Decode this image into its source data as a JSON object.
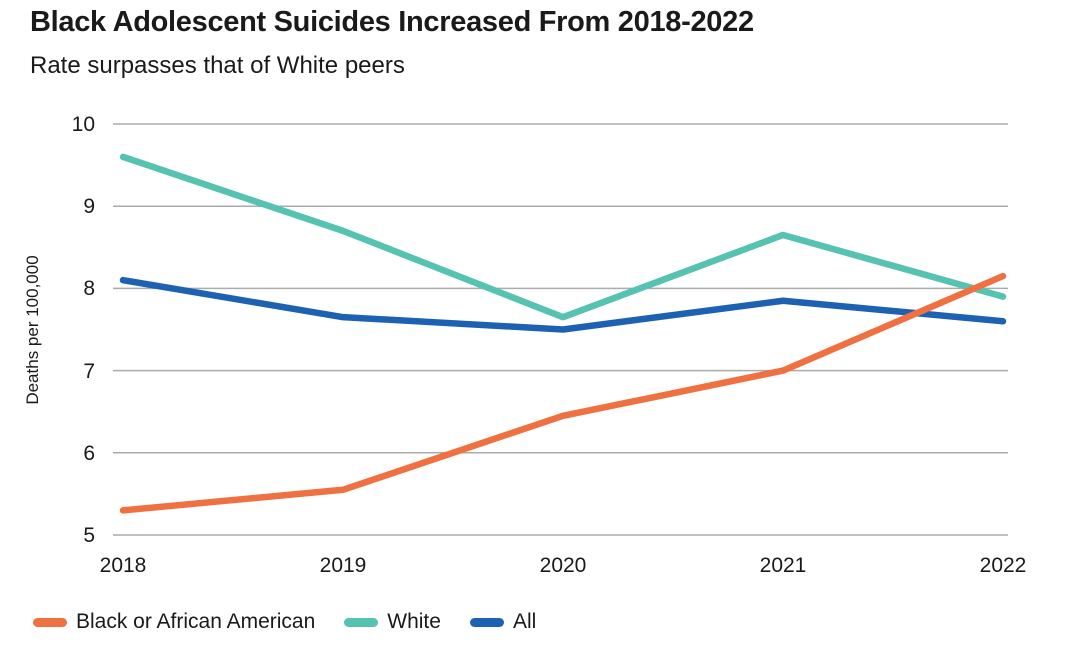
{
  "header": {
    "title": "Black Adolescent Suicides Increased From 2018-2022",
    "subtitle": "Rate surpasses that of White peers"
  },
  "colors": {
    "black_line": "#EF7040",
    "white_line": "#56C2B2",
    "all_line": "#1D62B2",
    "gridline": "#ABABAB",
    "text": "#1A1A1A",
    "background": "#FFFFFF"
  },
  "chart_data": {
    "type": "line",
    "title": "Black Adolescent Suicides Increased From 2018-2022",
    "subtitle": "Rate surpasses that of White peers",
    "x": [
      "2018",
      "2019",
      "2020",
      "2021",
      "2022"
    ],
    "series": [
      {
        "name": "Black or African American",
        "color": "#EF7040",
        "values": [
          5.3,
          5.55,
          6.45,
          7.0,
          8.15
        ]
      },
      {
        "name": "White",
        "color": "#56C2B2",
        "values": [
          9.6,
          8.7,
          7.65,
          8.65,
          7.9
        ]
      },
      {
        "name": "All",
        "color": "#1D62B2",
        "values": [
          8.1,
          7.65,
          7.5,
          7.85,
          7.6
        ]
      }
    ],
    "draw_order": [
      1,
      2,
      0
    ],
    "ylabel": "Deaths per 100,000",
    "xlabel": "",
    "yticks": [
      10,
      9,
      8,
      7,
      6,
      5
    ],
    "ylim": [
      5,
      10
    ],
    "grid": "horizontal-only",
    "legend_position": "bottom-left",
    "legend": [
      "Black or African American",
      "White",
      "All"
    ]
  }
}
